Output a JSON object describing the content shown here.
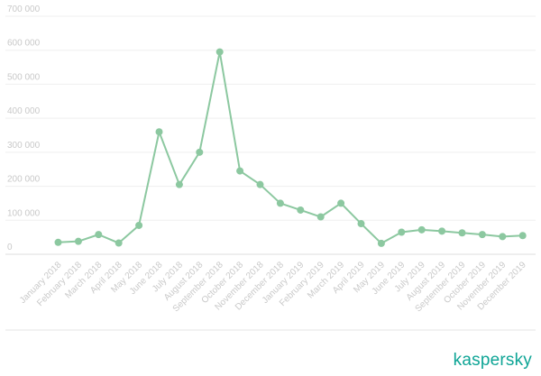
{
  "chart_data": {
    "type": "line",
    "title": "",
    "xlabel": "",
    "ylabel": "",
    "categories": [
      "January 2018",
      "February 2018",
      "March 2018",
      "April 2018",
      "May 2018",
      "June 2018",
      "July 2018",
      "August 2018",
      "September 2018",
      "October 2018",
      "November 2018",
      "December 2018",
      "January 2019",
      "February 2019",
      "March 2019",
      "April 2019",
      "May 2019",
      "June 2019",
      "July 2019",
      "August 2019",
      "September 2019",
      "October 2019",
      "November 2019",
      "December 2019"
    ],
    "series": [
      {
        "values": [
          35000,
          38000,
          58000,
          33000,
          85000,
          360000,
          205000,
          300000,
          595000,
          245000,
          205000,
          150000,
          130000,
          110000,
          150000,
          90000,
          32000,
          65000,
          72000,
          68000,
          63000,
          58000,
          52000,
          55000
        ]
      }
    ],
    "y_ticks": [
      "0",
      "100 000",
      "200 000",
      "300 000",
      "400 000",
      "500 000",
      "600 000",
      "700 000"
    ],
    "ylim": [
      0,
      700000
    ],
    "grid": true,
    "line_color": "#8cc8a0"
  },
  "brand": {
    "name": "kaspersky",
    "color": "#0fa596"
  }
}
